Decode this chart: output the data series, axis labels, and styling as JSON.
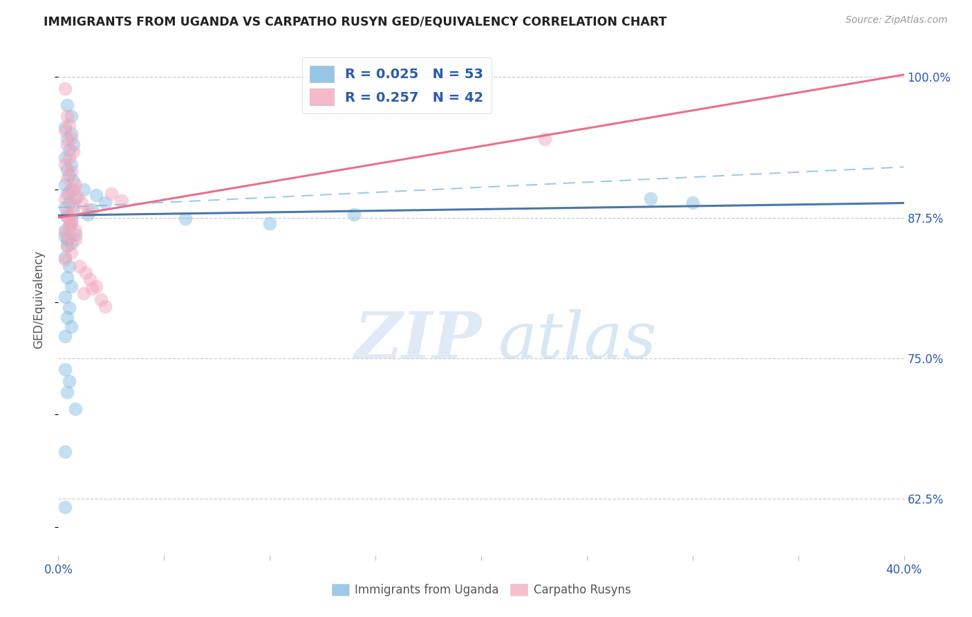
{
  "title": "IMMIGRANTS FROM UGANDA VS CARPATHO RUSYN GED/EQUIVALENCY CORRELATION CHART",
  "source": "Source: ZipAtlas.com",
  "ylabel": "GED/Equivalency",
  "xlim": [
    0.0,
    0.4
  ],
  "ylim": [
    0.575,
    1.03
  ],
  "legend_r1": "R = 0.025",
  "legend_n1": "N = 53",
  "legend_r2": "R = 0.257",
  "legend_n2": "N = 42",
  "blue_color": "#7db9e0",
  "pink_color": "#f5a8bc",
  "trend_blue_solid": "#4878a8",
  "trend_pink_solid": "#e8708a",
  "trend_blue_dash": "#7db9e0",
  "ytick_vals": [
    0.625,
    0.75,
    0.875,
    1.0
  ],
  "ytick_labels": [
    "62.5%",
    "75.0%",
    "87.5%",
    "100.0%"
  ],
  "blue_scatter": [
    [
      0.004,
      0.975
    ],
    [
      0.006,
      0.965
    ],
    [
      0.003,
      0.955
    ],
    [
      0.006,
      0.95
    ],
    [
      0.004,
      0.945
    ],
    [
      0.007,
      0.94
    ],
    [
      0.005,
      0.935
    ],
    [
      0.003,
      0.928
    ],
    [
      0.006,
      0.922
    ],
    [
      0.004,
      0.918
    ],
    [
      0.005,
      0.913
    ],
    [
      0.007,
      0.908
    ],
    [
      0.003,
      0.904
    ],
    [
      0.006,
      0.9
    ],
    [
      0.004,
      0.896
    ],
    [
      0.008,
      0.892
    ],
    [
      0.005,
      0.888
    ],
    [
      0.003,
      0.884
    ],
    [
      0.007,
      0.88
    ],
    [
      0.004,
      0.876
    ],
    [
      0.006,
      0.872
    ],
    [
      0.005,
      0.868
    ],
    [
      0.003,
      0.864
    ],
    [
      0.008,
      0.86
    ],
    [
      0.004,
      0.856
    ],
    [
      0.006,
      0.852
    ],
    [
      0.012,
      0.9
    ],
    [
      0.018,
      0.895
    ],
    [
      0.022,
      0.888
    ],
    [
      0.016,
      0.882
    ],
    [
      0.014,
      0.878
    ],
    [
      0.003,
      0.84
    ],
    [
      0.005,
      0.832
    ],
    [
      0.004,
      0.822
    ],
    [
      0.006,
      0.814
    ],
    [
      0.003,
      0.805
    ],
    [
      0.005,
      0.795
    ],
    [
      0.004,
      0.786
    ],
    [
      0.006,
      0.778
    ],
    [
      0.003,
      0.77
    ],
    [
      0.003,
      0.74
    ],
    [
      0.005,
      0.73
    ],
    [
      0.004,
      0.72
    ],
    [
      0.008,
      0.705
    ],
    [
      0.003,
      0.667
    ],
    [
      0.003,
      0.618
    ],
    [
      0.14,
      0.878
    ],
    [
      0.003,
      0.858
    ],
    [
      0.004,
      0.85
    ],
    [
      0.06,
      0.874
    ],
    [
      0.1,
      0.87
    ],
    [
      0.28,
      0.892
    ],
    [
      0.3,
      0.888
    ]
  ],
  "pink_scatter": [
    [
      0.003,
      0.99
    ],
    [
      0.23,
      0.945
    ],
    [
      0.004,
      0.965
    ],
    [
      0.005,
      0.958
    ],
    [
      0.003,
      0.952
    ],
    [
      0.006,
      0.946
    ],
    [
      0.004,
      0.94
    ],
    [
      0.007,
      0.934
    ],
    [
      0.005,
      0.928
    ],
    [
      0.003,
      0.922
    ],
    [
      0.006,
      0.916
    ],
    [
      0.004,
      0.91
    ],
    [
      0.008,
      0.904
    ],
    [
      0.005,
      0.898
    ],
    [
      0.003,
      0.892
    ],
    [
      0.007,
      0.886
    ],
    [
      0.004,
      0.88
    ],
    [
      0.006,
      0.874
    ],
    [
      0.005,
      0.868
    ],
    [
      0.003,
      0.862
    ],
    [
      0.008,
      0.856
    ],
    [
      0.004,
      0.85
    ],
    [
      0.006,
      0.844
    ],
    [
      0.003,
      0.838
    ],
    [
      0.01,
      0.832
    ],
    [
      0.013,
      0.826
    ],
    [
      0.015,
      0.82
    ],
    [
      0.018,
      0.814
    ],
    [
      0.012,
      0.808
    ],
    [
      0.02,
      0.802
    ],
    [
      0.022,
      0.796
    ],
    [
      0.016,
      0.812
    ],
    [
      0.007,
      0.9
    ],
    [
      0.009,
      0.894
    ],
    [
      0.011,
      0.888
    ],
    [
      0.014,
      0.882
    ],
    [
      0.025,
      0.896
    ],
    [
      0.03,
      0.89
    ],
    [
      0.004,
      0.876
    ],
    [
      0.006,
      0.87
    ],
    [
      0.008,
      0.864
    ],
    [
      0.005,
      0.858
    ]
  ]
}
